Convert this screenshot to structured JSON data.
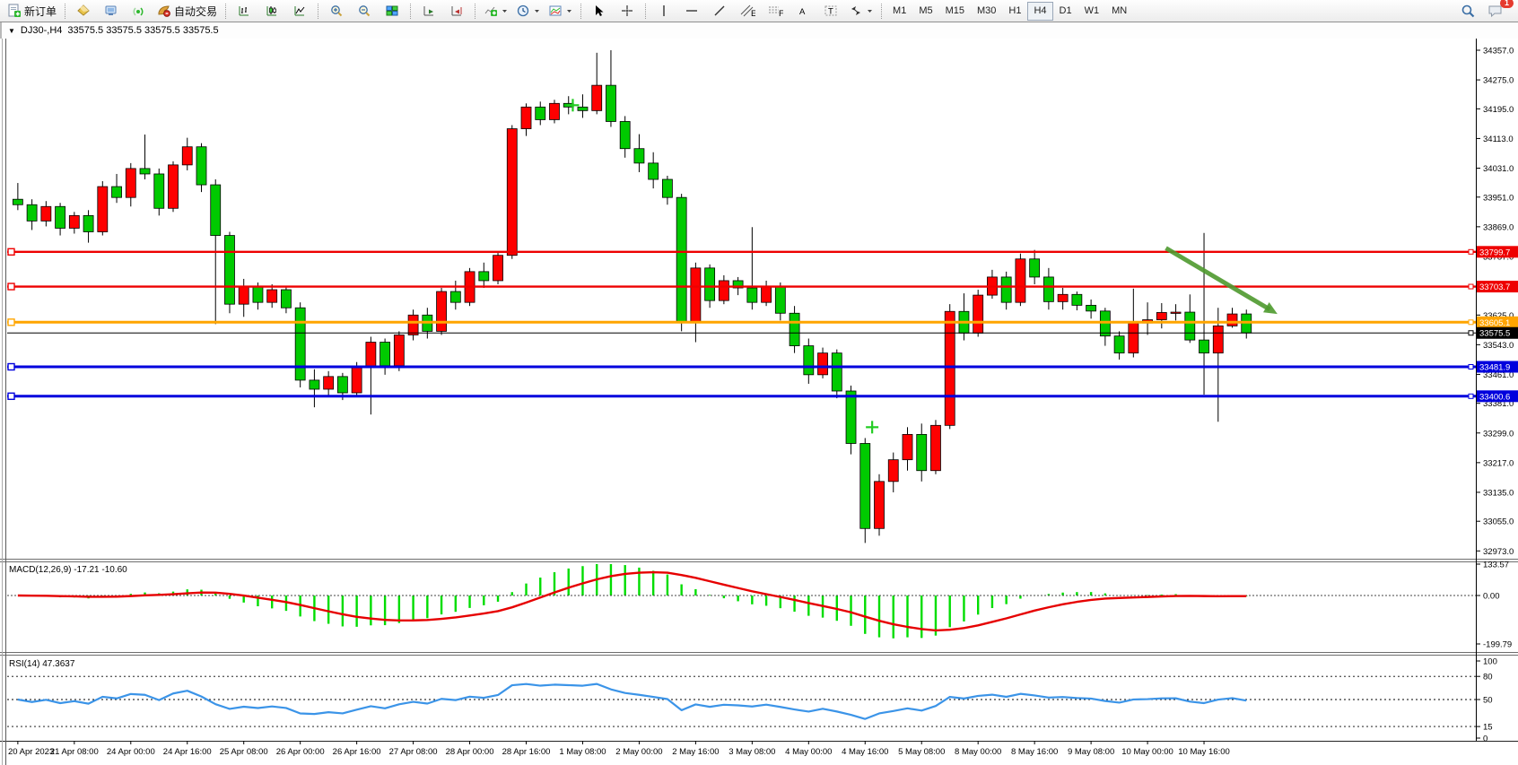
{
  "title": {
    "collapse": "▼",
    "symbol_period": "DJ30-,H4",
    "quotes": "33575.5 33575.5 33575.5 33575.5"
  },
  "toolbar": {
    "new_order_label": "新订单",
    "autotrading_label": "自动交易",
    "timeframes": [
      "M1",
      "M5",
      "M15",
      "M30",
      "H1",
      "H4",
      "D1",
      "W1",
      "MN"
    ],
    "active_timeframe": "H4",
    "badge_count": "1",
    "channel_letter": "E",
    "fibo_letter": "F",
    "text_letter": "A",
    "label_letter": "T"
  },
  "chart_data": {
    "type": "candlestick",
    "symbol": "DJ30-",
    "period": "H4",
    "candles": [
      [
        33945,
        33990,
        33915,
        33930
      ],
      [
        33930,
        33945,
        33860,
        33885
      ],
      [
        33885,
        33940,
        33870,
        33925
      ],
      [
        33925,
        33935,
        33845,
        33865
      ],
      [
        33865,
        33910,
        33850,
        33900
      ],
      [
        33900,
        33915,
        33825,
        33855
      ],
      [
        33855,
        33995,
        33845,
        33980
      ],
      [
        33980,
        34015,
        33935,
        33950
      ],
      [
        33950,
        34045,
        33925,
        34030
      ],
      [
        34030,
        34124,
        34000,
        34015
      ],
      [
        34015,
        34030,
        33900,
        33920
      ],
      [
        33920,
        34050,
        33910,
        34040
      ],
      [
        34040,
        34115,
        34025,
        34090
      ],
      [
        34090,
        34100,
        33965,
        33985
      ],
      [
        33985,
        34000,
        33600,
        33845
      ],
      [
        33845,
        33855,
        33630,
        33655
      ],
      [
        33655,
        33725,
        33620,
        33705
      ],
      [
        33705,
        33715,
        33640,
        33660
      ],
      [
        33660,
        33710,
        33645,
        33695
      ],
      [
        33695,
        33705,
        33630,
        33645
      ],
      [
        33645,
        33660,
        33425,
        33445
      ],
      [
        33445,
        33475,
        33370,
        33420
      ],
      [
        33420,
        33470,
        33400,
        33455
      ],
      [
        33455,
        33465,
        33390,
        33410
      ],
      [
        33410,
        33495,
        33400,
        33480
      ],
      [
        33480,
        33565,
        33350,
        33550
      ],
      [
        33550,
        33560,
        33460,
        33485
      ],
      [
        33485,
        33580,
        33470,
        33570
      ],
      [
        33570,
        33640,
        33555,
        33625
      ],
      [
        33625,
        33645,
        33560,
        33580
      ],
      [
        33580,
        33700,
        33570,
        33690
      ],
      [
        33690,
        33720,
        33640,
        33660
      ],
      [
        33660,
        33755,
        33650,
        33745
      ],
      [
        33745,
        33770,
        33700,
        33720
      ],
      [
        33720,
        33800,
        33710,
        33790
      ],
      [
        33790,
        34150,
        33780,
        34140
      ],
      [
        34140,
        34210,
        34120,
        34200
      ],
      [
        34200,
        34215,
        34150,
        34165
      ],
      [
        34165,
        34220,
        34155,
        34210
      ],
      [
        34210,
        34230,
        34180,
        34200
      ],
      [
        34200,
        34235,
        34170,
        34190
      ],
      [
        34190,
        34350,
        34180,
        34260
      ],
      [
        34260,
        34357,
        34145,
        34160
      ],
      [
        34160,
        34175,
        34060,
        34085
      ],
      [
        34085,
        34125,
        34020,
        34045
      ],
      [
        34045,
        34075,
        33975,
        34000
      ],
      [
        34000,
        34010,
        33930,
        33950
      ],
      [
        33950,
        33960,
        33580,
        33605
      ],
      [
        33605,
        33770,
        33550,
        33755
      ],
      [
        33755,
        33765,
        33645,
        33665
      ],
      [
        33665,
        33735,
        33655,
        33720
      ],
      [
        33720,
        33730,
        33680,
        33700
      ],
      [
        33700,
        33868,
        33640,
        33660
      ],
      [
        33660,
        33720,
        33650,
        33705
      ],
      [
        33705,
        33715,
        33610,
        33630
      ],
      [
        33630,
        33650,
        33520,
        33540
      ],
      [
        33540,
        33560,
        33435,
        33460
      ],
      [
        33460,
        33535,
        33450,
        33520
      ],
      [
        33520,
        33530,
        33395,
        33415
      ],
      [
        33415,
        33430,
        33240,
        33270
      ],
      [
        33270,
        33285,
        32995,
        33035
      ],
      [
        33035,
        33185,
        33015,
        33165
      ],
      [
        33165,
        33245,
        33135,
        33225
      ],
      [
        33225,
        33315,
        33195,
        33295
      ],
      [
        33295,
        33325,
        33165,
        33195
      ],
      [
        33195,
        33335,
        33185,
        33320
      ],
      [
        33320,
        33655,
        33310,
        33635
      ],
      [
        33635,
        33685,
        33555,
        33575
      ],
      [
        33575,
        33695,
        33565,
        33680
      ],
      [
        33680,
        33750,
        33670,
        33730
      ],
      [
        33730,
        33745,
        33640,
        33660
      ],
      [
        33660,
        33795,
        33650,
        33780
      ],
      [
        33780,
        33805,
        33710,
        33730
      ],
      [
        33730,
        33755,
        33640,
        33662
      ],
      [
        33662,
        33700,
        33640,
        33682
      ],
      [
        33682,
        33690,
        33638,
        33652
      ],
      [
        33652,
        33668,
        33615,
        33636
      ],
      [
        33636,
        33645,
        33540,
        33567
      ],
      [
        33567,
        33580,
        33502,
        33520
      ],
      [
        33520,
        33698,
        33508,
        33603
      ],
      [
        33603,
        33660,
        33570,
        33612
      ],
      [
        33612,
        33658,
        33588,
        33632
      ],
      [
        33632,
        33655,
        33610,
        33633
      ],
      [
        33633,
        33682,
        33548,
        33556
      ],
      [
        33556,
        33852,
        33405,
        33520
      ],
      [
        33520,
        33645,
        33330,
        33595
      ],
      [
        33595,
        33645,
        33590,
        33628
      ],
      [
        33628,
        33640,
        33560,
        33575.5
      ]
    ],
    "x_labels": [
      {
        "bar": 0,
        "text": "20 Apr 2023"
      },
      {
        "bar": 4,
        "text": "21 Apr 08:00"
      },
      {
        "bar": 8,
        "text": "24 Apr 00:00"
      },
      {
        "bar": 12,
        "text": "24 Apr 16:00"
      },
      {
        "bar": 16,
        "text": "25 Apr 08:00"
      },
      {
        "bar": 20,
        "text": "26 Apr 00:00"
      },
      {
        "bar": 24,
        "text": "26 Apr 16:00"
      },
      {
        "bar": 28,
        "text": "27 Apr 08:00"
      },
      {
        "bar": 32,
        "text": "28 Apr 00:00"
      },
      {
        "bar": 36,
        "text": "28 Apr 16:00"
      },
      {
        "bar": 40,
        "text": "1 May 08:00"
      },
      {
        "bar": 44,
        "text": "2 May 00:00"
      },
      {
        "bar": 48,
        "text": "2 May 16:00"
      },
      {
        "bar": 52,
        "text": "3 May 08:00"
      },
      {
        "bar": 56,
        "text": "4 May 00:00"
      },
      {
        "bar": 60,
        "text": "4 May 16:00"
      },
      {
        "bar": 64,
        "text": "5 May 08:00"
      },
      {
        "bar": 68,
        "text": "8 May 00:00"
      },
      {
        "bar": 72,
        "text": "8 May 16:00"
      },
      {
        "bar": 76,
        "text": "9 May 08:00"
      },
      {
        "bar": 80,
        "text": "10 May 00:00"
      },
      {
        "bar": 84,
        "text": "10 May 16:00"
      }
    ],
    "y_ticks": [
      "34357.0",
      "34275.0",
      "34195.0",
      "34113.0",
      "34031.0",
      "33951.0",
      "33869.0",
      "33787.0",
      "33705.0",
      "33625.0",
      "33543.0",
      "33461.0",
      "33381.0",
      "33299.0",
      "33217.0",
      "33135.0",
      "33055.0",
      "32973.0"
    ],
    "levels": [
      {
        "price": 33799.7,
        "label": "33799.7",
        "color": "#ee0000",
        "width": 2.4
      },
      {
        "price": 33703.7,
        "label": "33703.7",
        "color": "#ee0000",
        "width": 2.4
      },
      {
        "price": 33605.1,
        "label": "33605.1",
        "color": "#ffa500",
        "width": 3
      },
      {
        "price": 33481.9,
        "label": "33481.9",
        "color": "#0000dd",
        "width": 3
      },
      {
        "price": 33400.6,
        "label": "33400.6",
        "color": "#0000dd",
        "width": 3
      }
    ],
    "current_price": {
      "price": 33575.5,
      "label": "33575.5",
      "color": "#000000"
    },
    "macd": {
      "display": "MACD(12,26,9) -17.21 -10.60",
      "params": "12,26,9",
      "value": -17.21,
      "signal": -10.6,
      "axis_labels": [
        "133.57",
        "0.00",
        "-199.79"
      ]
    },
    "rsi": {
      "display": "RSI(14) 47.3637",
      "params": "14",
      "value": 47.3637,
      "levels": [
        80,
        50,
        15
      ],
      "axis_labels": [
        "100",
        "80",
        "50",
        "15",
        "0"
      ]
    },
    "annotations": {
      "arrow": {
        "from_bar": 81.3,
        "from_price": 33810,
        "to_bar": 89.2,
        "to_price": 33628,
        "color": "#4e9a2e"
      },
      "crosses": [
        {
          "bar": 39.3,
          "price": 34205
        },
        {
          "bar": 60.5,
          "price": 33315
        }
      ],
      "cross_color": "#22cc22"
    },
    "colors": {
      "bull": "#fe0000",
      "bear": "#00ca00",
      "outline": "#000000",
      "macd_hist": "#00dd00",
      "macd_signal": "#e60000",
      "rsi_line": "#3b94e8"
    }
  }
}
